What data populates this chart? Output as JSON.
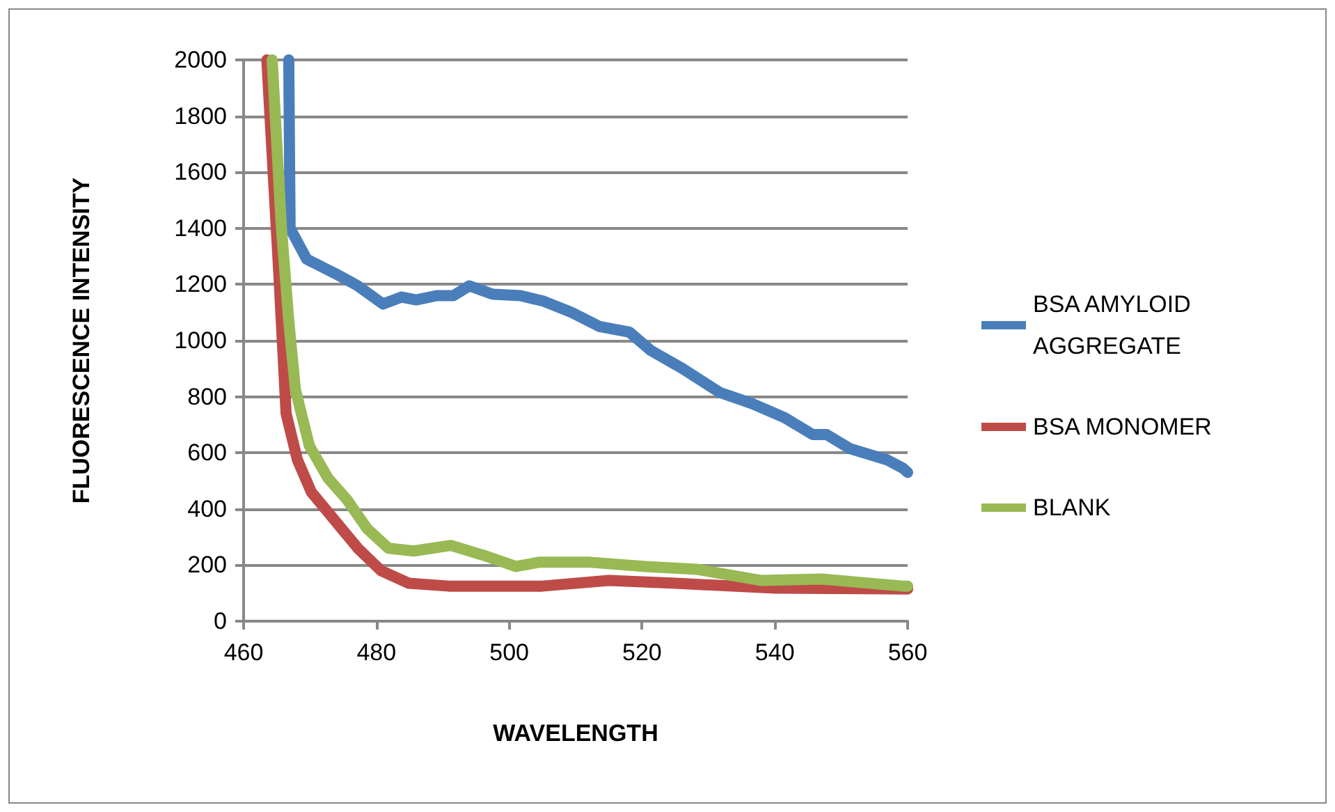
{
  "chart_data": {
    "type": "line",
    "xlabel": "WAVELENGTH",
    "ylabel": "FLUORESCENCE INTENSITY",
    "xlim": [
      460,
      560
    ],
    "xticks": [
      460,
      480,
      500,
      520,
      540,
      560
    ],
    "ylim": [
      0,
      2000
    ],
    "yticks": [
      0,
      200,
      400,
      600,
      800,
      1000,
      1200,
      1400,
      1600,
      1800,
      2000
    ],
    "grid": "y",
    "legend": "right",
    "marker": "none",
    "line_style": "solid",
    "series": [
      {
        "name": "BSA AMYLOID AGGREGATE",
        "color": "#4a7ebb",
        "x": [
          466.8,
          467,
          469.5,
          473.7,
          477.2,
          481,
          483.8,
          486,
          489.1,
          491.6,
          494,
          497.5,
          501.7,
          505.2,
          509.4,
          513.6,
          518.1,
          521.3,
          526.1,
          531.7,
          536.6,
          541.5,
          545.7,
          547.8,
          551.3,
          556.9,
          559.3,
          560
        ],
        "values": [
          2000,
          1400,
          1290,
          1240,
          1195,
          1130,
          1155,
          1145,
          1160,
          1160,
          1195,
          1165,
          1160,
          1140,
          1100,
          1050,
          1030,
          965,
          900,
          815,
          775,
          725,
          665,
          665,
          615,
          575,
          545,
          530
        ]
      },
      {
        "name": "BSA MONOMER",
        "color": "#be4b48",
        "x": [
          463.5,
          465.3,
          466.4,
          468.1,
          470.2,
          473.7,
          477.2,
          480.7,
          484.9,
          490.9,
          505,
          515,
          525,
          540,
          560
        ],
        "values": [
          2000,
          1240,
          740,
          575,
          460,
          360,
          260,
          180,
          135,
          125,
          125,
          145,
          135,
          118,
          115
        ]
      },
      {
        "name": "BLANK",
        "color": "#98b954",
        "x": [
          464.3,
          465.7,
          466.8,
          467.8,
          469.9,
          472.7,
          475.5,
          478.6,
          481.8,
          485.6,
          491.2,
          496.1,
          501,
          504.5,
          512.2,
          520.5,
          528.2,
          538,
          547.1,
          559.3,
          560
        ],
        "values": [
          2000,
          1400,
          1070,
          825,
          625,
          510,
          435,
          330,
          260,
          250,
          270,
          235,
          195,
          210,
          210,
          195,
          185,
          145,
          150,
          125,
          125
        ]
      }
    ]
  }
}
